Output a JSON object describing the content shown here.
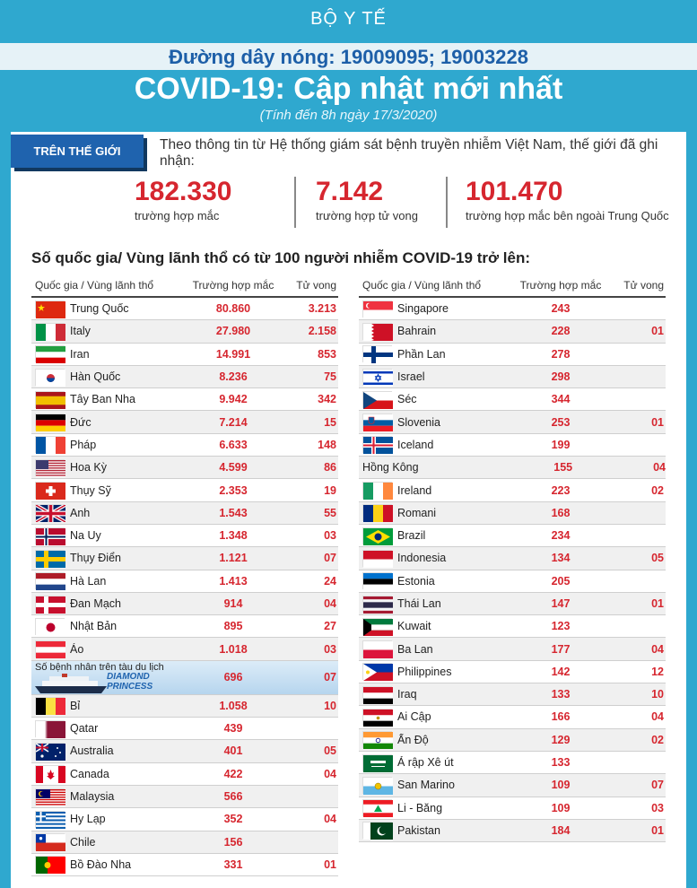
{
  "header": {
    "ministry": "BỘ Y TẾ",
    "hotline": "Đường dây nóng: 19009095; 19003228",
    "title": "COVID-19: Cập nhật mới nhất",
    "subtitle": "(Tính đến 8h ngày 17/3/2020)"
  },
  "world": {
    "tag": "TRÊN THẾ GIỚI",
    "intro": "Theo thông tin từ Hệ thống giám sát bệnh truyền nhiễm Việt Nam, thế giới đã ghi nhận:",
    "stats": [
      {
        "value": "182.330",
        "label": "trường hợp mắc"
      },
      {
        "value": "7.142",
        "label": "trường hợp tử vong"
      },
      {
        "value": "101.470",
        "label": "trường hợp  mắc bên ngoài Trung Quốc"
      }
    ]
  },
  "section_title": "Số quốc gia/ Vùng lãnh thổ có từ 100 người  nhiễm COVID-19 trở lên:",
  "table_headers": {
    "country": "Quốc gia / Vùng lãnh thổ",
    "cases": "Trường hợp mắc",
    "deaths": "Tử vong"
  },
  "ship": {
    "label": "Số bệnh nhân trên tàu du lịch",
    "name_line1": "DIAMOND",
    "name_line2": "PRINCESS",
    "cases": "696",
    "deaths": "07"
  },
  "left_rows": [
    {
      "name": "Trung Quốc",
      "cases": "80.860",
      "deaths": "3.213",
      "flag": "cn"
    },
    {
      "name": "Italy",
      "cases": "27.980",
      "deaths": "2.158",
      "flag": "it"
    },
    {
      "name": "Iran",
      "cases": "14.991",
      "deaths": "853",
      "flag": "ir"
    },
    {
      "name": "Hàn Quốc",
      "cases": "8.236",
      "deaths": "75",
      "flag": "kr"
    },
    {
      "name": "Tây Ban Nha",
      "cases": "9.942",
      "deaths": "342",
      "flag": "es"
    },
    {
      "name": "Đức",
      "cases": "7.214",
      "deaths": "15",
      "flag": "de"
    },
    {
      "name": "Pháp",
      "cases": "6.633",
      "deaths": "148",
      "flag": "fr"
    },
    {
      "name": "Hoa Kỳ",
      "cases": "4.599",
      "deaths": "86",
      "flag": "us"
    },
    {
      "name": "Thụy Sỹ",
      "cases": "2.353",
      "deaths": "19",
      "flag": "ch"
    },
    {
      "name": "Anh",
      "cases": "1.543",
      "deaths": "55",
      "flag": "gb"
    },
    {
      "name": "Na Uy",
      "cases": "1.348",
      "deaths": "03",
      "flag": "no"
    },
    {
      "name": "Thụy Điển",
      "cases": "1.121",
      "deaths": "07",
      "flag": "se"
    },
    {
      "name": "Hà Lan",
      "cases": "1.413",
      "deaths": "24",
      "flag": "nl"
    },
    {
      "name": "Đan Mạch",
      "cases": "914",
      "deaths": "04",
      "flag": "dk"
    },
    {
      "name": "Nhật Bản",
      "cases": "895",
      "deaths": "27",
      "flag": "jp"
    },
    {
      "name": "Áo",
      "cases": "1.018",
      "deaths": "03",
      "flag": "at"
    }
  ],
  "left_rows_after_ship": [
    {
      "name": "Bỉ",
      "cases": "1.058",
      "deaths": "10",
      "flag": "be"
    },
    {
      "name": "Qatar",
      "cases": "439",
      "deaths": "",
      "flag": "qa"
    },
    {
      "name": "Australia",
      "cases": "401",
      "deaths": "05",
      "flag": "au"
    },
    {
      "name": "Canada",
      "cases": "422",
      "deaths": "04",
      "flag": "ca"
    },
    {
      "name": "Malaysia",
      "cases": "566",
      "deaths": "",
      "flag": "my"
    },
    {
      "name": "Hy Lạp",
      "cases": "352",
      "deaths": "04",
      "flag": "gr"
    },
    {
      "name": "Chile",
      "cases": "156",
      "deaths": "",
      "flag": "cl"
    },
    {
      "name": "Bồ Đào Nha",
      "cases": "331",
      "deaths": "01",
      "flag": "pt"
    }
  ],
  "right_rows": [
    {
      "name": "Singapore",
      "cases": "243",
      "deaths": "",
      "flag": "sg"
    },
    {
      "name": "Bahrain",
      "cases": "228",
      "deaths": "01",
      "flag": "bh"
    },
    {
      "name": "Phần Lan",
      "cases": "278",
      "deaths": "",
      "flag": "fi"
    },
    {
      "name": "Israel",
      "cases": "298",
      "deaths": "",
      "flag": "il"
    },
    {
      "name": "Séc",
      "cases": "344",
      "deaths": "",
      "flag": "cz"
    },
    {
      "name": "Slovenia",
      "cases": "253",
      "deaths": "01",
      "flag": "si"
    },
    {
      "name": "Iceland",
      "cases": "199",
      "deaths": "",
      "flag": "is"
    },
    {
      "name": "Hồng Kông",
      "cases": "155",
      "deaths": "04",
      "flag": ""
    },
    {
      "name": "Ireland",
      "cases": "223",
      "deaths": "02",
      "flag": "ie"
    },
    {
      "name": "Romani",
      "cases": "168",
      "deaths": "",
      "flag": "ro"
    },
    {
      "name": "Brazil",
      "cases": "234",
      "deaths": "",
      "flag": "br"
    },
    {
      "name": "Indonesia",
      "cases": "134",
      "deaths": "05",
      "flag": "id"
    },
    {
      "name": "Estonia",
      "cases": "205",
      "deaths": "",
      "flag": "ee"
    },
    {
      "name": "Thái Lan",
      "cases": "147",
      "deaths": "01",
      "flag": "th"
    },
    {
      "name": "Kuwait",
      "cases": "123",
      "deaths": "",
      "flag": "kw"
    },
    {
      "name": "Ba Lan",
      "cases": "177",
      "deaths": "04",
      "flag": "pl"
    },
    {
      "name": "Philippines",
      "cases": "142",
      "deaths": "12",
      "flag": "ph"
    },
    {
      "name": "Iraq",
      "cases": "133",
      "deaths": "10",
      "flag": "iq"
    },
    {
      "name": "Ai Cập",
      "cases": "166",
      "deaths": "04",
      "flag": "eg"
    },
    {
      "name": "Ấn Độ",
      "cases": "129",
      "deaths": "02",
      "flag": "in"
    },
    {
      "name": "Ả rập Xê út",
      "cases": "133",
      "deaths": "",
      "flag": "sa"
    },
    {
      "name": "San Marino",
      "cases": "109",
      "deaths": "07",
      "flag": "sm"
    },
    {
      "name": "Li - Băng",
      "cases": "109",
      "deaths": "03",
      "flag": "lb"
    },
    {
      "name": "Pakistan",
      "cases": "184",
      "deaths": "01",
      "flag": "pk"
    }
  ],
  "colors": {
    "brand_blue": "#2fa8cf",
    "tag_blue": "#1f63ae",
    "number_red": "#d6262f"
  }
}
